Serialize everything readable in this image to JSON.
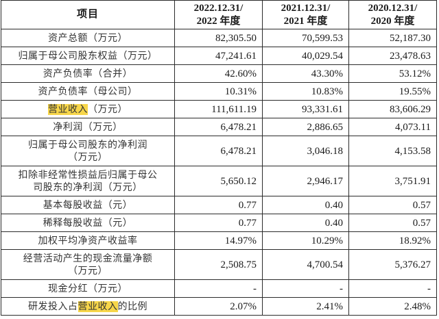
{
  "table": {
    "headers": {
      "item": "项目",
      "col1": [
        "2022.12.31/",
        "2022 年度"
      ],
      "col2": [
        "2021.12.31/",
        "2021 年度"
      ],
      "col3": [
        "2020.12.31/",
        "2020 年度"
      ]
    },
    "rows": [
      {
        "label_pre": "资产总额（万元）",
        "label_hl": "",
        "label_post": "",
        "values": [
          "82,305.50",
          "70,599.53",
          "52,187.30"
        ]
      },
      {
        "label_pre": "归属于母公司股东权益（万元）",
        "label_hl": "",
        "label_post": "",
        "values": [
          "47,241.61",
          "40,029.54",
          "23,478.63"
        ]
      },
      {
        "label_pre": "资产负债率（合并）",
        "label_hl": "",
        "label_post": "",
        "values": [
          "42.60%",
          "43.30%",
          "53.12%"
        ]
      },
      {
        "label_pre": "资产负债率（母公司）",
        "label_hl": "",
        "label_post": "",
        "values": [
          "10.31%",
          "10.83%",
          "19.55%"
        ]
      },
      {
        "label_pre": "",
        "label_hl": "营业收入",
        "label_post": "（万元）",
        "values": [
          "111,611.19",
          "93,331.61",
          "83,606.29"
        ]
      },
      {
        "label_pre": "净利润（万元）",
        "label_hl": "",
        "label_post": "",
        "values": [
          "6,478.21",
          "2,886.65",
          "4,073.11"
        ]
      },
      {
        "label_pre": "归属于母公司股东的净利润",
        "label_line2": "（万元）",
        "values": [
          "6,478.21",
          "3,046.18",
          "4,153.58"
        ]
      },
      {
        "label_pre": "扣除非经常性损益后归属于母公",
        "label_line2": "司股东的净利润（万元）",
        "values": [
          "5,650.12",
          "2,946.17",
          "3,751.91"
        ]
      },
      {
        "label_pre": "基本每股收益（元）",
        "label_hl": "",
        "label_post": "",
        "values": [
          "0.77",
          "0.40",
          "0.57"
        ]
      },
      {
        "label_pre": "稀释每股收益（元）",
        "label_hl": "",
        "label_post": "",
        "values": [
          "0.77",
          "0.40",
          "0.57"
        ]
      },
      {
        "label_pre": "加权平均净资产收益率",
        "label_hl": "",
        "label_post": "",
        "values": [
          "14.97%",
          "10.29%",
          "18.92%"
        ]
      },
      {
        "label_pre": "经营活动产生的现金流量净额",
        "label_line2": "（万元）",
        "values": [
          "2,508.75",
          "4,700.54",
          "5,376.27"
        ]
      },
      {
        "label_pre": "现金分红（万元）",
        "label_hl": "",
        "label_post": "",
        "values": [
          "-",
          "-",
          "-"
        ]
      },
      {
        "label_pre": "研发投入占",
        "label_hl": "营业收入",
        "label_post": "的比例",
        "values": [
          "2.07%",
          "2.41%",
          "2.48%"
        ]
      }
    ]
  },
  "colors": {
    "highlight": "#f7d64a",
    "border": "#2a2a2a",
    "text": "#1a1a1a"
  }
}
